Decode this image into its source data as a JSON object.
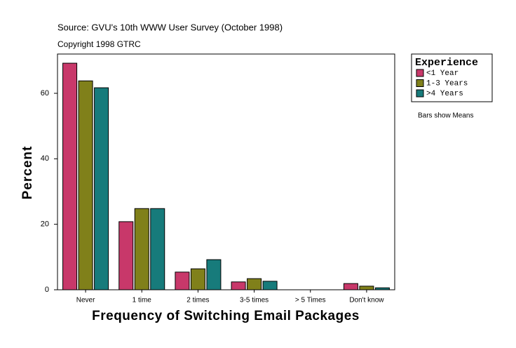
{
  "chart_data": {
    "type": "bar",
    "title": "Source: GVU's 10th WWW User Survey (October 1998)",
    "subtitle": "Copyright 1998 GTRC",
    "x_label": "Frequency of Switching Email Packages",
    "y_label": "Percent",
    "legend_title": "Experience",
    "note": "Bars show Means",
    "categories": [
      "Never",
      "1 time",
      "2 times",
      "3-5 times",
      "> 5 Times",
      "Don't know"
    ],
    "series": [
      {
        "name": "<1 Year",
        "color": "#c8386a",
        "values": [
          69.2,
          20.8,
          5.4,
          2.4,
          0,
          1.9
        ]
      },
      {
        "name": "1-3 Years",
        "color": "#80801a",
        "values": [
          63.8,
          24.8,
          6.4,
          3.4,
          0,
          1.1
        ]
      },
      {
        "name": ">4 Years",
        "color": "#177b7b",
        "values": [
          61.7,
          24.8,
          9.2,
          2.6,
          0,
          0.6
        ]
      }
    ],
    "ylim": [
      0,
      72
    ],
    "yticks": [
      0,
      20,
      40,
      60
    ],
    "grid": false,
    "legend_position": "right"
  }
}
